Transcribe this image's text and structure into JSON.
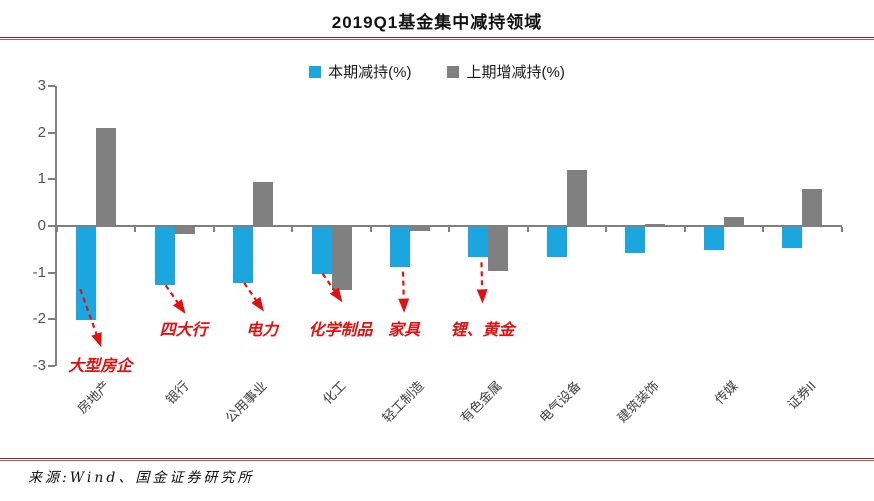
{
  "footer": {
    "source": "来源:Wind、国金证券研究所"
  },
  "colors": {
    "series_current": "#1BA6E0",
    "series_previous": "#808080",
    "annotation_red": "#E01111",
    "rule_red": "#8E2626",
    "axis_gray": "#7F7F7F"
  },
  "chart_data": {
    "type": "bar",
    "title": "2019Q1基金集中减持领域",
    "categories": [
      "房地产",
      "银行",
      "公用事业",
      "化工",
      "轻工制造",
      "有色金属",
      "电气设备",
      "建筑装饰",
      "传媒",
      "证券II"
    ],
    "series": [
      {
        "name": "本期减持(%)",
        "color": "#1BA6E0",
        "values": [
          -2.0,
          -1.25,
          -1.2,
          -1.0,
          -0.85,
          -0.65,
          -0.65,
          -0.55,
          -0.5,
          -0.45
        ]
      },
      {
        "name": "上期增减持(%)",
        "color": "#808080",
        "values": [
          2.1,
          -0.15,
          0.95,
          -1.35,
          -0.08,
          -0.95,
          1.2,
          0.05,
          0.2,
          0.8
        ]
      }
    ],
    "xlabel": "",
    "ylabel": "",
    "ylim": [
      -3,
      3
    ],
    "yticks": [
      3,
      2,
      1,
      0,
      -1,
      -2,
      -3
    ],
    "grid": false,
    "legend_position": "top-center",
    "annotations": [
      {
        "text": "大型房企",
        "category_index": 0,
        "series": "本期减持(%)",
        "arrow": "diagonal"
      },
      {
        "text": "四大行",
        "category_index": 1,
        "series": "本期减持(%)",
        "arrow": "diagonal"
      },
      {
        "text": "电力",
        "category_index": 2,
        "series": "本期减持(%)",
        "arrow": "diagonal"
      },
      {
        "text": "化学制品",
        "category_index": 3,
        "series": "本期减持(%)",
        "arrow": "diagonal"
      },
      {
        "text": "家具",
        "category_index": 4,
        "series": "本期减持(%)",
        "arrow": "vertical"
      },
      {
        "text": "锂、黄金",
        "category_index": 5,
        "series": "本期减持(%)",
        "arrow": "vertical"
      }
    ]
  }
}
